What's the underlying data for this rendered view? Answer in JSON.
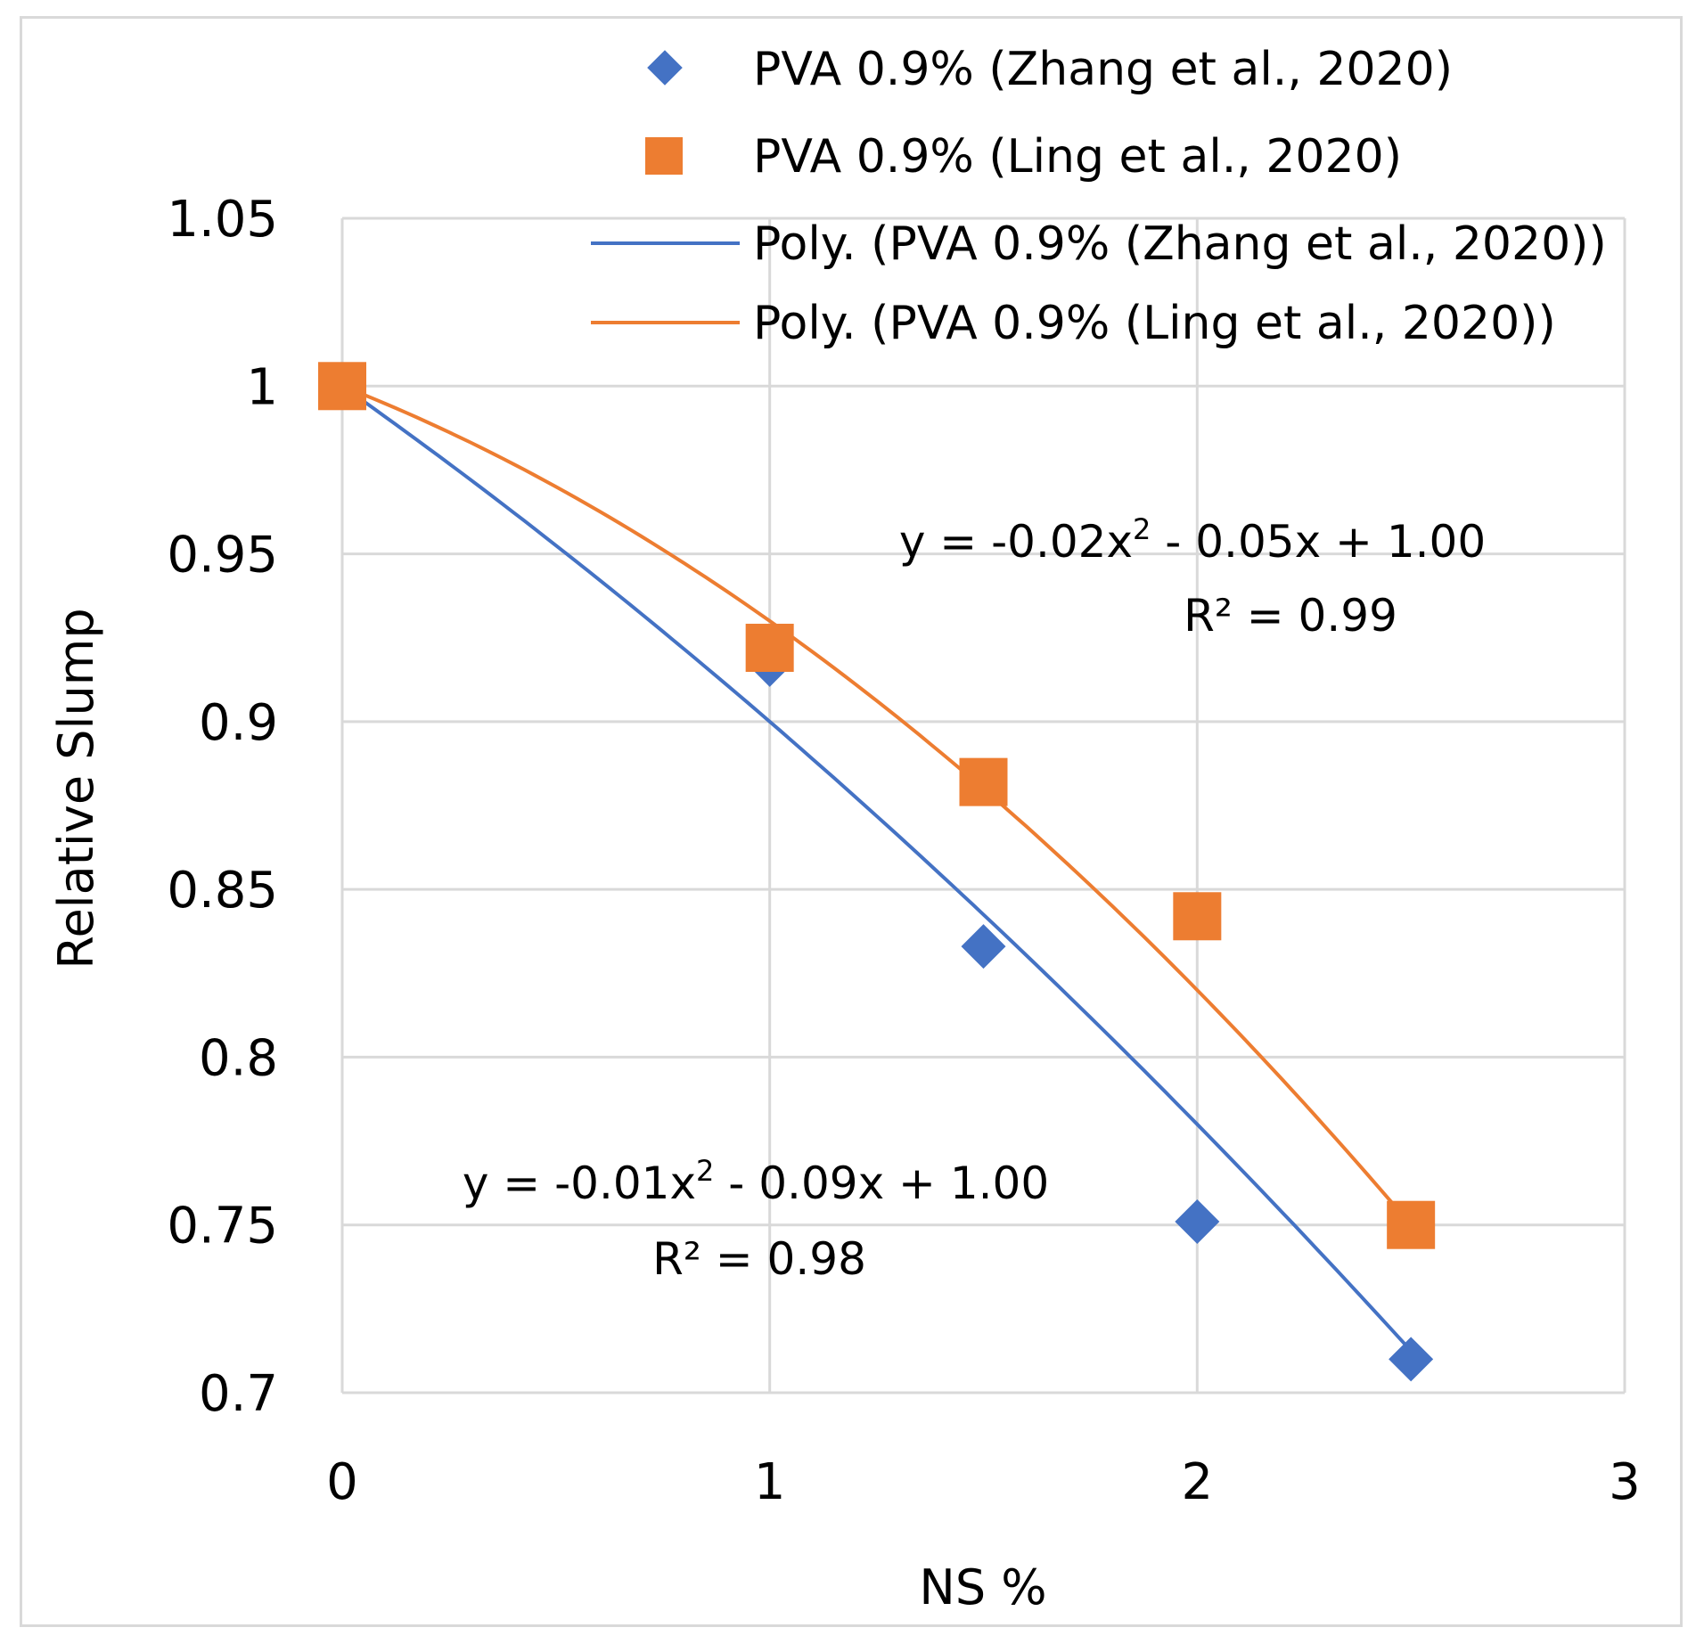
{
  "chart_data": {
    "type": "scatter",
    "title": "",
    "xlabel": "NS %",
    "ylabel": "Relative Slump",
    "xlim": [
      0,
      3
    ],
    "ylim": [
      0.7,
      1.05
    ],
    "xticks": [
      "0",
      "1",
      "2",
      "3"
    ],
    "yticks": [
      "0.7",
      "0.75",
      "0.8",
      "0.85",
      "0.9",
      "0.95",
      "1",
      "1.05"
    ],
    "grid": true,
    "legend_position": "top-right",
    "series": [
      {
        "name": "PVA 0.9% (Zhang et al., 2020)",
        "marker": "diamond",
        "color": "#4472c4",
        "x": [
          0,
          1,
          1.5,
          2,
          2.5
        ],
        "y": [
          1.0,
          0.917,
          0.833,
          0.751,
          0.71
        ]
      },
      {
        "name": "PVA 0.9% (Ling et al., 2020)",
        "marker": "square",
        "color": "#ed7d31",
        "x": [
          0,
          1,
          1.5,
          2,
          2.5
        ],
        "y": [
          1.0,
          0.922,
          0.882,
          0.842,
          0.75
        ]
      }
    ],
    "trendlines": [
      {
        "name": "Poly. (PVA 0.9% (Zhang et al., 2020))",
        "color": "#4472c4",
        "coefficients": [
          -0.01,
          -0.09,
          1.0
        ],
        "equation_main": "y = -0.01x",
        "equation_exp": "2",
        "equation_rest": " - 0.09x + 1.00",
        "r2_label": "R² = 0.98"
      },
      {
        "name": "Poly. (PVA 0.9% (Ling et al., 2020))",
        "color": "#ed7d31",
        "coefficients": [
          -0.02,
          -0.05,
          1.0
        ],
        "equation_main": "y = -0.02x",
        "equation_exp": "2",
        "equation_rest": " - 0.05x + 1.00",
        "r2_label": "R² = 0.99"
      }
    ]
  }
}
